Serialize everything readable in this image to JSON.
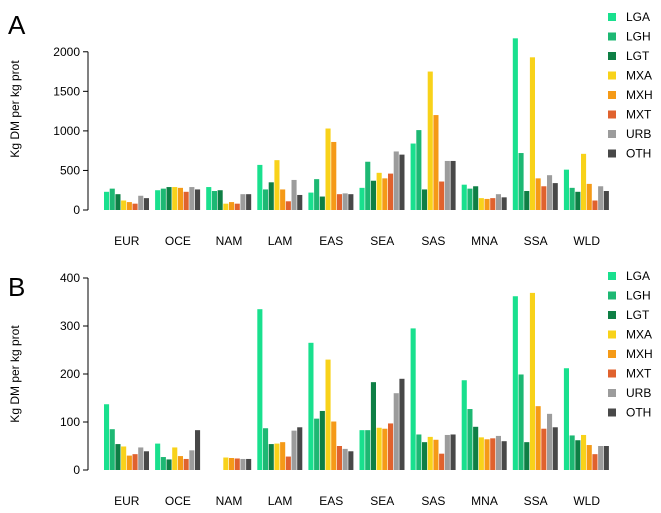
{
  "colors": {
    "LGA": "#19e08e",
    "LGH": "#1db873",
    "LGT": "#0e7f45",
    "MXA": "#f8d21a",
    "MXH": "#f59a17",
    "MXT": "#e0622e",
    "URB": "#9c9c9c",
    "OTH": "#484848"
  },
  "chart_data": [
    {
      "panel_label": "A",
      "type": "bar",
      "ylabel": "Kg DM per kg prot",
      "ylim": [
        0,
        2250
      ],
      "yticks": [
        0,
        500,
        1000,
        1500,
        2000
      ],
      "categories": [
        "EUR",
        "OCE",
        "NAM",
        "LAM",
        "EAS",
        "SEA",
        "SAS",
        "MNA",
        "SSA",
        "WLD"
      ],
      "legend_position": "right",
      "series": [
        {
          "name": "LGA",
          "values": [
            230,
            250,
            290,
            570,
            220,
            280,
            840,
            320,
            2170,
            510
          ]
        },
        {
          "name": "LGH",
          "values": [
            270,
            270,
            240,
            260,
            390,
            610,
            1010,
            270,
            720,
            280
          ]
        },
        {
          "name": "LGT",
          "values": [
            200,
            290,
            250,
            350,
            170,
            370,
            260,
            300,
            240,
            230
          ]
        },
        {
          "name": "MXA",
          "values": [
            120,
            290,
            80,
            630,
            1030,
            470,
            1750,
            150,
            1930,
            710
          ]
        },
        {
          "name": "MXH",
          "values": [
            100,
            280,
            100,
            260,
            860,
            400,
            1200,
            140,
            400,
            330
          ]
        },
        {
          "name": "MXT",
          "values": [
            80,
            230,
            80,
            110,
            200,
            460,
            360,
            150,
            300,
            120
          ]
        },
        {
          "name": "URB",
          "values": [
            180,
            290,
            200,
            380,
            210,
            740,
            620,
            200,
            440,
            300
          ]
        },
        {
          "name": "OTH",
          "values": [
            150,
            260,
            200,
            190,
            200,
            700,
            620,
            160,
            340,
            240
          ]
        }
      ]
    },
    {
      "panel_label": "B",
      "type": "bar",
      "ylabel": "Kg DM per kg prot",
      "ylim": [
        0,
        400
      ],
      "yticks": [
        0,
        100,
        200,
        300,
        400
      ],
      "categories": [
        "EUR",
        "OCE",
        "NAM",
        "LAM",
        "EAS",
        "SEA",
        "SAS",
        "MNA",
        "SSA",
        "WLD"
      ],
      "legend_position": "right",
      "series": [
        {
          "name": "LGA",
          "values": [
            137,
            55,
            0,
            335,
            265,
            83,
            295,
            187,
            362,
            212
          ]
        },
        {
          "name": "LGH",
          "values": [
            85,
            27,
            0,
            87,
            107,
            83,
            74,
            127,
            199,
            72
          ]
        },
        {
          "name": "LGT",
          "values": [
            54,
            22,
            0,
            54,
            123,
            183,
            58,
            90,
            58,
            62
          ]
        },
        {
          "name": "MXA",
          "values": [
            49,
            47,
            26,
            55,
            230,
            88,
            69,
            68,
            369,
            73
          ]
        },
        {
          "name": "MXH",
          "values": [
            30,
            29,
            25,
            58,
            101,
            86,
            63,
            64,
            133,
            52
          ]
        },
        {
          "name": "MXT",
          "values": [
            33,
            23,
            24,
            28,
            50,
            97,
            34,
            66,
            86,
            33
          ]
        },
        {
          "name": "URB",
          "values": [
            47,
            41,
            23,
            82,
            44,
            160,
            73,
            71,
            117,
            50
          ]
        },
        {
          "name": "OTH",
          "values": [
            39,
            83,
            23,
            89,
            39,
            190,
            74,
            60,
            89,
            50
          ]
        }
      ]
    }
  ]
}
